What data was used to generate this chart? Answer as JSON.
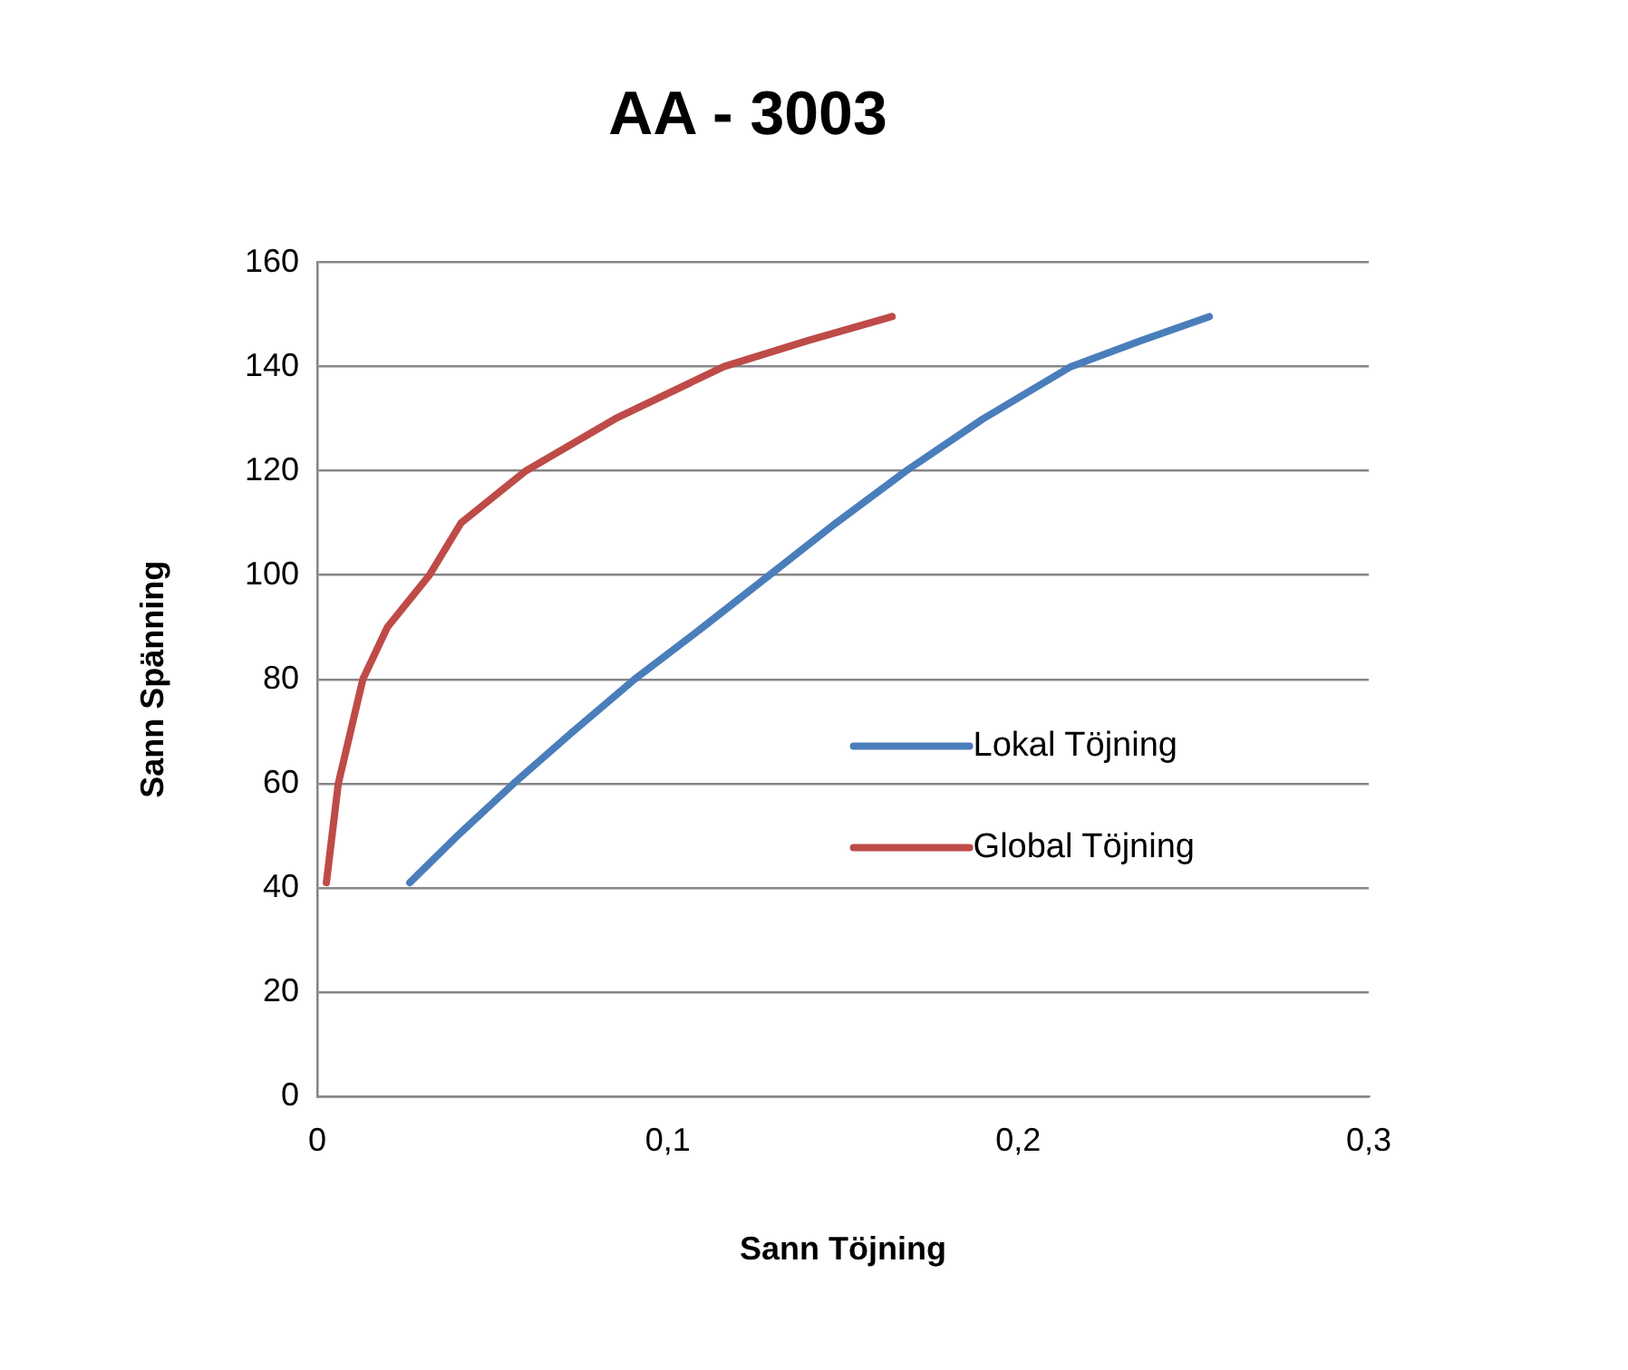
{
  "chart_data": {
    "type": "line",
    "title": "AA - 3003",
    "xlabel": "Sann Töjning",
    "ylabel": "Sann Spänning",
    "series": [
      {
        "name": "Lokal Töjning",
        "color": "#4a7ebb",
        "x": [
          0.0264,
          0.04,
          0.056,
          0.073,
          0.0905,
          0.11,
          0.129,
          0.148,
          0.168,
          0.19,
          0.215,
          0.235,
          0.2545
        ],
        "values": [
          41,
          50,
          60,
          70,
          80,
          90,
          100,
          110,
          120,
          130,
          140,
          145,
          149.6
        ]
      },
      {
        "name": "Global Töjning",
        "color": "#be4b48",
        "x": [
          0.0026,
          0.006,
          0.0095,
          0.013,
          0.02,
          0.032,
          0.041,
          0.0595,
          0.085,
          0.116,
          0.14,
          0.164
        ],
        "values": [
          41,
          60,
          70,
          80,
          90,
          100,
          110,
          120,
          130,
          140,
          145,
          149.6
        ]
      }
    ],
    "xlim": [
      0,
      0.3
    ],
    "xticks": [
      0,
      {
        "value": 0.1,
        "label": "0,1"
      },
      {
        "value": 0.2,
        "label": "0,2"
      },
      {
        "value": 0.3,
        "label": "0,3"
      }
    ],
    "ylim": [
      0,
      160
    ],
    "yticks": [
      0,
      20,
      40,
      60,
      80,
      100,
      120,
      140,
      160
    ],
    "grid": "y",
    "legend": "center",
    "marker": "none",
    "line_style": "solid"
  }
}
